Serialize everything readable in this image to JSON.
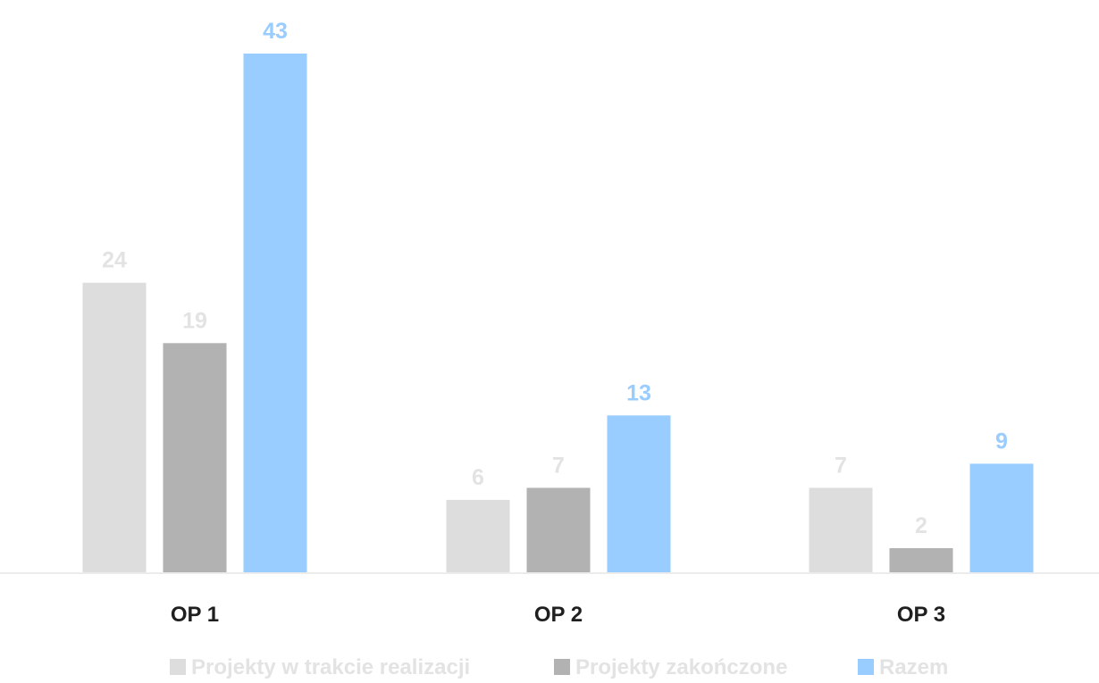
{
  "chart_data": {
    "type": "bar",
    "title": "",
    "xlabel": "",
    "ylabel": "",
    "categories": [
      "OP 1",
      "OP 2",
      "OP 3"
    ],
    "ylim": [
      0,
      43
    ],
    "grid": false,
    "legend_position": "bottom",
    "series": [
      {
        "name": "Projekty w trakcie realizacji",
        "values": [
          24,
          6,
          7
        ],
        "color": "#dddddd",
        "label_color": "#e3e3e3"
      },
      {
        "name": "Projekty zakończone",
        "values": [
          19,
          7,
          2
        ],
        "color": "#b2b2b2",
        "label_color": "#e3e3e3"
      },
      {
        "name": "Razem",
        "values": [
          43,
          13,
          9
        ],
        "color": "#99ccff",
        "label_color": "#99ccff"
      }
    ]
  }
}
